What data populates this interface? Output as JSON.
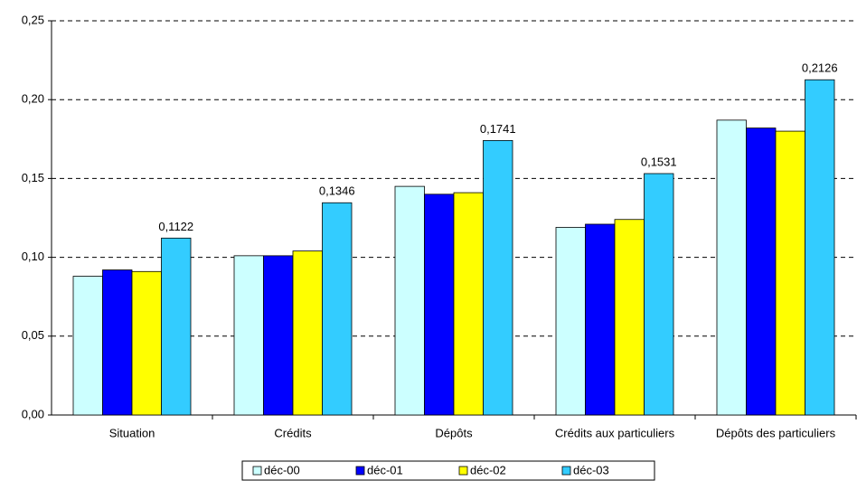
{
  "chart_data": {
    "type": "bar",
    "categories": [
      "Situation",
      "Crédits",
      "Dépôts",
      "Crédits aux particuliers",
      "Dépôts des particuliers"
    ],
    "series": [
      {
        "name": "déc-00",
        "color": "#ccffff",
        "values": [
          0.088,
          0.101,
          0.145,
          0.119,
          0.187
        ]
      },
      {
        "name": "déc-01",
        "color": "#0000ff",
        "values": [
          0.092,
          0.101,
          0.14,
          0.121,
          0.182
        ]
      },
      {
        "name": "déc-02",
        "color": "#ffff00",
        "values": [
          0.091,
          0.104,
          0.141,
          0.124,
          0.18
        ]
      },
      {
        "name": "déc-03",
        "color": "#33ccff",
        "values": [
          0.1122,
          0.1346,
          0.1741,
          0.1531,
          0.2126
        ],
        "value_labels": [
          "0,1122",
          "0,1346",
          "0,1741",
          "0,1531",
          "0,2126"
        ]
      }
    ],
    "ylim": [
      0,
      0.25
    ],
    "yticks": [
      {
        "value": 0,
        "label": "0,00"
      },
      {
        "value": 0.05,
        "label": "0,05"
      },
      {
        "value": 0.1,
        "label": "0,10"
      },
      {
        "value": 0.15,
        "label": "0,15"
      },
      {
        "value": 0.2,
        "label": "0,20"
      },
      {
        "value": 0.25,
        "label": "0,25"
      }
    ],
    "grid": true,
    "legend": "bottom"
  }
}
